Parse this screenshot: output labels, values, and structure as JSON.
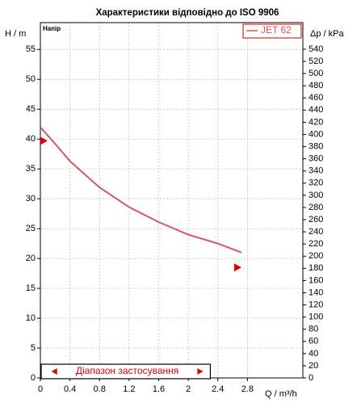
{
  "chart_data": {
    "type": "line",
    "title": "Характеристики відповідно до ISO 9906",
    "y_label": "H / m",
    "y_sublabel": "Напір",
    "y2_label": "Δp / kPa",
    "x_label": "Q / m³/h",
    "xlim": [
      0,
      3.55
    ],
    "xticks": [
      0,
      0.4,
      0.8,
      1.2,
      1.6,
      2,
      2.4,
      2.8
    ],
    "ylim": [
      0,
      59.5
    ],
    "yticks": [
      0,
      5,
      10,
      15,
      20,
      25,
      30,
      35,
      40,
      45,
      50,
      55
    ],
    "y2lim": [
      0,
      583.7
    ],
    "y2ticks": [
      0,
      20,
      40,
      60,
      80,
      100,
      120,
      140,
      160,
      180,
      200,
      220,
      240,
      260,
      280,
      300,
      320,
      340,
      360,
      380,
      400,
      420,
      440,
      460,
      480,
      500,
      520,
      540
    ],
    "grid": true,
    "legend": "upper right",
    "series": [
      {
        "name": "JET 62",
        "color": "#d9545e",
        "x": [
          0,
          0.2,
          0.4,
          0.8,
          1.2,
          1.6,
          2.0,
          2.4,
          2.72
        ],
        "values": [
          42,
          39.2,
          36.3,
          31.9,
          28.6,
          26.1,
          24.0,
          22.5,
          21.0
        ]
      }
    ],
    "markers": {
      "color": "#e00000",
      "x": [
        0,
        2.72
      ],
      "values": [
        39.7,
        18.5
      ]
    },
    "range": {
      "label": "Діапазон застосування",
      "x": [
        0.15,
        2.2
      ]
    }
  }
}
